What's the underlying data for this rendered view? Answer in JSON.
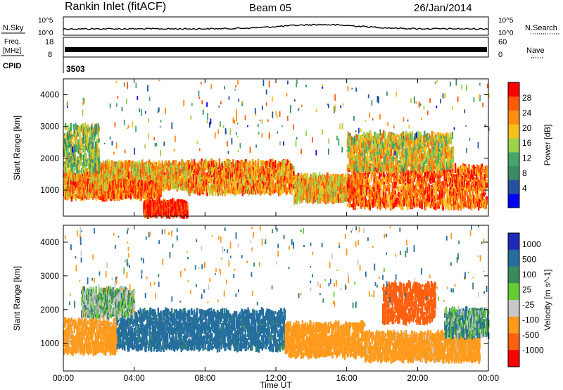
{
  "header": {
    "station": "Rankin Inlet (fitACF)",
    "beam": "Beam 05",
    "date": "26/Jan/2014"
  },
  "panels": {
    "nsky_label": "N.Sky",
    "nsky_ticks": [
      "10^5",
      "10^0"
    ],
    "nsearch_label": "N.Search",
    "nsearch_ticks": [
      "10^5",
      "10^0"
    ],
    "freq_label_1": "Freq.",
    "freq_label_2": "[MHz]",
    "freq_ticks": [
      "18",
      "8"
    ],
    "nave_label": "Nave",
    "nave_ticks": [
      "60",
      "0"
    ],
    "cpid_label": "CPID",
    "cpid_value": "3503"
  },
  "colors": {
    "power_scale": [
      "#0000ff",
      "#2452a0",
      "#3b8a65",
      "#46a66a",
      "#9bd24a",
      "#f5c21b",
      "#ff8d12",
      "#ff5a08",
      "#ff0000"
    ],
    "velocity_scale": [
      "#2028b8",
      "#256e9e",
      "#3a8a5e",
      "#66cc33",
      "#c8c8c8",
      "#ff9a1c",
      "#ff6010",
      "#ff0000"
    ]
  },
  "chart_data": [
    {
      "type": "heatmap",
      "name": "power",
      "xlabel": "Time UT",
      "ylabel": "Slant Range [km]",
      "x_ticks": [
        "00:00",
        "04:00",
        "08:00",
        "12:00",
        "16:00",
        "20:00",
        "00:00"
      ],
      "xlim": [
        0,
        24
      ],
      "ylim": [
        180,
        4500
      ],
      "y_ticks": [
        1000,
        2000,
        3000,
        4000
      ],
      "colorbar": {
        "label": "Power [dB]",
        "ticks": [
          "4",
          "8",
          "12",
          "16",
          "20",
          "24",
          "28"
        ],
        "range": [
          0,
          30
        ]
      },
      "echo_regions": [
        {
          "t0": 0.0,
          "t1": 3.2,
          "r_center": 1150,
          "r_width": 500,
          "power": 22
        },
        {
          "t0": 1.5,
          "t1": 7.0,
          "r_center": 1450,
          "r_width": 500,
          "power": 20
        },
        {
          "t0": 2.5,
          "t1": 5.5,
          "r_center": 1000,
          "r_width": 300,
          "power": 24
        },
        {
          "t0": 7.0,
          "t1": 13.0,
          "r_center": 1400,
          "r_width": 600,
          "power": 22
        },
        {
          "t0": 4.5,
          "t1": 7.0,
          "r_center": 420,
          "r_width": 260,
          "power": 28
        },
        {
          "t0": 13.0,
          "t1": 17.0,
          "r_center": 1050,
          "r_width": 500,
          "power": 20
        },
        {
          "t0": 16.0,
          "t1": 23.9,
          "r_center": 1100,
          "r_width": 800,
          "power": 24
        },
        {
          "t0": 0.0,
          "t1": 2.0,
          "r_center": 2300,
          "r_width": 900,
          "power": 14
        },
        {
          "t0": 16.0,
          "t1": 22.0,
          "r_center": 2200,
          "r_width": 700,
          "power": 18
        }
      ]
    },
    {
      "type": "heatmap",
      "name": "velocity",
      "xlabel": "Time UT",
      "ylabel": "Slant Range [km]",
      "x_ticks": [
        "00:00",
        "04:00",
        "08:00",
        "12:00",
        "16:00",
        "20:00",
        "00:00"
      ],
      "xlim": [
        0,
        24
      ],
      "ylim": [
        180,
        4500
      ],
      "y_ticks": [
        1000,
        2000,
        3000,
        4000
      ],
      "colorbar": {
        "label": "Velocity [m s^-1]",
        "ticks": [
          "1000",
          "500",
          "100",
          "25",
          "-25",
          "-100",
          "-500",
          "-1000"
        ]
      },
      "echo_regions": [
        {
          "t0": 0.0,
          "t1": 3.0,
          "r_center": 1200,
          "r_width": 600,
          "velocity": -200
        },
        {
          "t0": 3.0,
          "t1": 12.5,
          "r_center": 1400,
          "r_width": 700,
          "velocity": 200
        },
        {
          "t0": 12.5,
          "t1": 17.0,
          "r_center": 1100,
          "r_width": 600,
          "velocity": -300
        },
        {
          "t0": 17.0,
          "t1": 23.5,
          "r_center": 900,
          "r_width": 500,
          "velocity": -200
        },
        {
          "t0": 1.0,
          "t1": 4.0,
          "r_center": 2200,
          "r_width": 500,
          "velocity": 0
        },
        {
          "t0": 18.0,
          "t1": 21.0,
          "r_center": 2200,
          "r_width": 700,
          "velocity": -700
        },
        {
          "t0": 21.5,
          "t1": 24.0,
          "r_center": 1600,
          "r_width": 500,
          "velocity": 50
        }
      ]
    }
  ]
}
